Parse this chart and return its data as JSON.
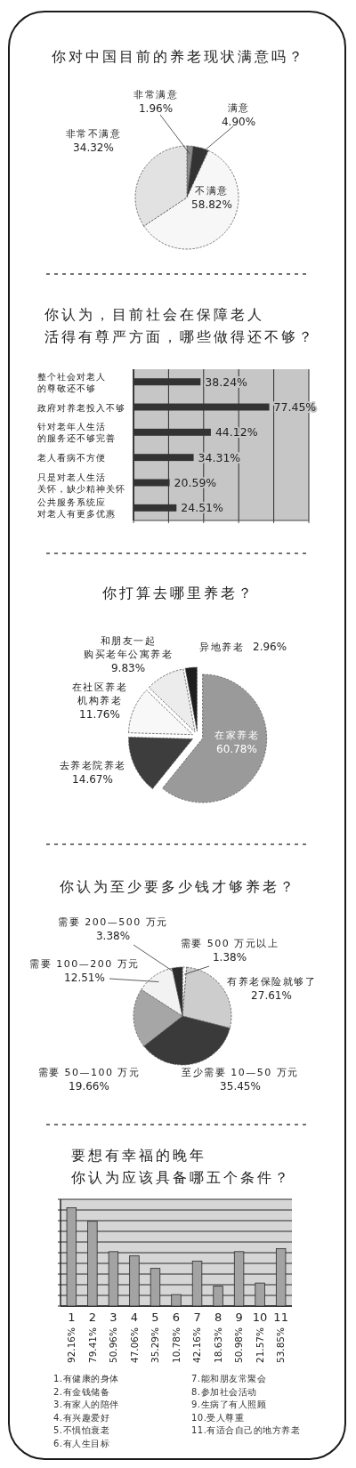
{
  "chart_data": [
    {
      "type": "pie",
      "title": "你对中国目前的养老现状满意吗？",
      "categories": [
        "非常满意",
        "满意",
        "不满意",
        "非常不满意"
      ],
      "values": [
        1.96,
        4.9,
        58.82,
        34.32
      ],
      "value_labels": [
        "1.96%",
        "4.90%",
        "58.82%",
        "34.32%"
      ],
      "colors": [
        "#8c8c8c",
        "#333333",
        "#f7f7f7",
        "#e2e2e2"
      ]
    },
    {
      "type": "bar",
      "orientation": "horizontal",
      "title": "你认为，目前社会在保障老人活得有尊严方面，哪些做得还不够？",
      "categories": [
        "整个社会对老人的尊敬还不够",
        "政府对养老投入不够",
        "针对老年人生活的服务还不够完善",
        "老人看病不方便",
        "只是对老人生活关怀，缺少精神关怀",
        "公共服务系统应对老人有更多优惠"
      ],
      "values": [
        38.24,
        77.45,
        44.12,
        34.31,
        20.59,
        24.51
      ],
      "value_labels": [
        "38.24%",
        "77.45%",
        "44.12%",
        "34.31%",
        "20.59%",
        "24.51%"
      ],
      "color": "#333333",
      "xlim": [
        0,
        100
      ],
      "xticks": [
        {
          "value": 0,
          "label": null
        },
        {
          "value": 20,
          "label": null
        },
        {
          "value": 40,
          "label": null
        },
        {
          "value": 60,
          "label": null
        },
        {
          "value": 80,
          "label": null
        },
        {
          "value": 100,
          "label": null
        }
      ],
      "grid": "x",
      "tick_labels": "y"
    },
    {
      "type": "pie",
      "title": "你打算去哪里养老？",
      "categories": [
        "在家养老",
        "去养老院养老",
        "在社区养老机构养老",
        "和朋友一起购买老年公寓养老",
        "异地养老"
      ],
      "values": [
        60.78,
        14.67,
        11.76,
        9.83,
        2.96
      ],
      "value_labels": [
        "60.78%",
        "14.67%",
        "11.76%",
        "9.83%",
        "2.96%"
      ],
      "colors": [
        "#9a9a9a",
        "#3d3d3d",
        "#f8f8f8",
        "#ececec",
        "#1e1e1e"
      ]
    },
    {
      "type": "pie",
      "title": "你认为至少要多少钱才够养老？",
      "categories": [
        "需要 500 万元以上",
        "有养老保险就够了",
        "至少需要 10—50 万元",
        "需要 50—100 万元",
        "需要 100—200 万元",
        "需要 200—500 万元"
      ],
      "values": [
        1.38,
        27.61,
        35.45,
        19.66,
        12.51,
        3.38
      ],
      "value_labels": [
        "1.38%",
        "27.61%",
        "35.45%",
        "19.66%",
        "12.51%",
        "3.38%"
      ],
      "colors": [
        "#fafafa",
        "#cdcdcd",
        "#3a3a3a",
        "#a6a6a6",
        "#f2f2f2",
        "#2b2b2b"
      ]
    },
    {
      "type": "bar",
      "title": "要想有幸福的晚年你认为应该具备哪五个条件？",
      "categories": [
        "1",
        "2",
        "3",
        "4",
        "5",
        "6",
        "7",
        "8",
        "9",
        "10",
        "11"
      ],
      "values": [
        92.16,
        79.41,
        50.96,
        47.06,
        35.29,
        10.78,
        42.16,
        18.63,
        50.98,
        21.57,
        53.85
      ],
      "value_labels": [
        "92.16%",
        "79.41%",
        "50.96%",
        "47.06%",
        "35.29%",
        "10.78%",
        "42.16%",
        "18.63%",
        "50.98%",
        "21.57%",
        "53.85%"
      ],
      "annotations": [
        "1.有健康的身体",
        "2.有金钱储备",
        "3.有家人的陪伴",
        "4.有兴趣爱好",
        "5.不惧怕衰老",
        "6.有人生目标",
        "7.能和朋友常聚会",
        "8.参加社会活动",
        "9.生病了有人照顾",
        "10.受人尊重",
        "11.有适合自己的地方养老"
      ],
      "color": "#a3a3a3",
      "ylim": [
        0,
        100
      ],
      "yticks": [
        {
          "value": 0,
          "label": null
        },
        {
          "value": 10,
          "label": null
        },
        {
          "value": 20,
          "label": null
        },
        {
          "value": 30,
          "label": null
        },
        {
          "value": 40,
          "label": null
        },
        {
          "value": 50,
          "label": null
        },
        {
          "value": 60,
          "label": null
        },
        {
          "value": 70,
          "label": null
        },
        {
          "value": 80,
          "label": null
        },
        {
          "value": 90,
          "label": null
        },
        {
          "value": 100,
          "label": null
        }
      ],
      "grid": "y",
      "tick_labels": "x"
    }
  ]
}
